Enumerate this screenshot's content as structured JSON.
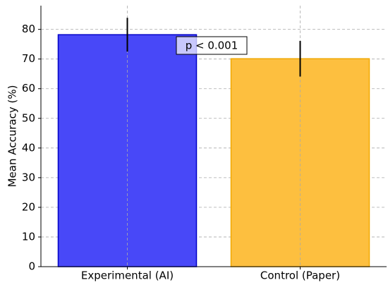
{
  "chart_data": {
    "type": "bar",
    "y_label": "Mean Accuracy (%)",
    "categories": [
      "Experimental (AI)",
      "Control (Paper)"
    ],
    "values": [
      78.2,
      70.1
    ],
    "errors": [
      5.7,
      6.0
    ],
    "colors": [
      "#4848f8",
      "#fdbf3f"
    ],
    "edge_colors": [
      "#0000c8",
      "#f0a800"
    ],
    "ylim": [
      0,
      88
    ],
    "yticks": [
      0,
      10,
      20,
      30,
      40,
      50,
      60,
      70,
      80
    ],
    "grid": true,
    "annotation": "p < 0.001"
  }
}
